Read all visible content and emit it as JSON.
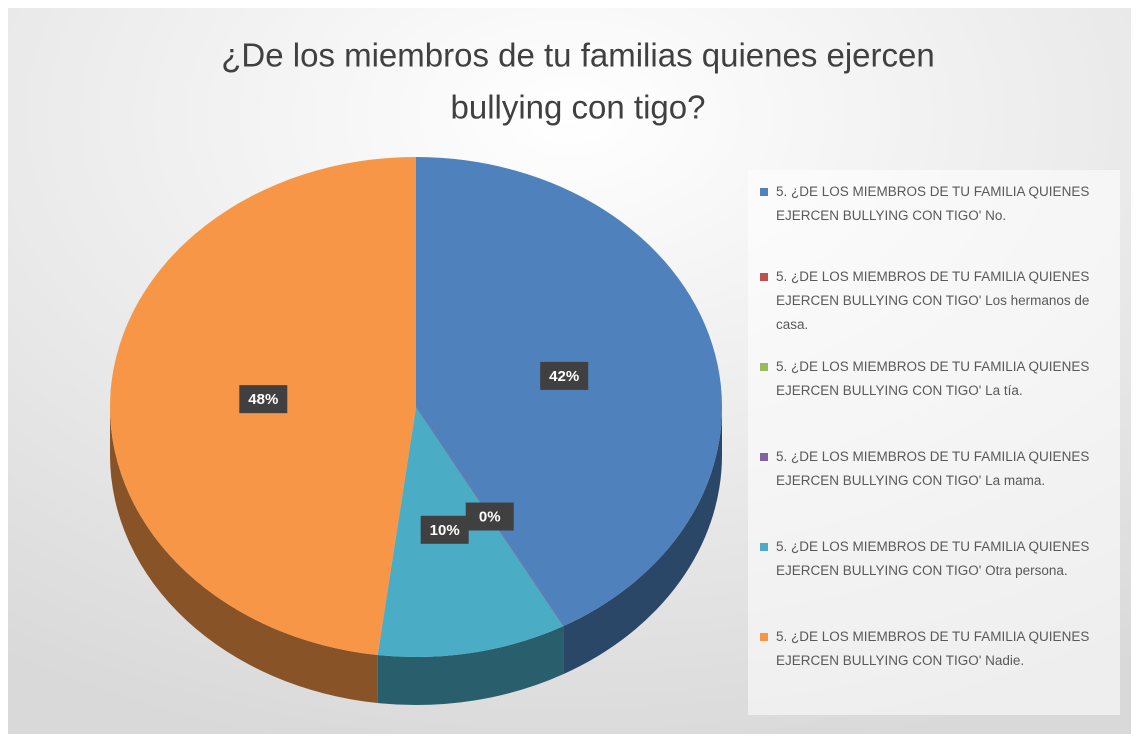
{
  "chart_data": {
    "type": "pie",
    "title": "¿De los miembros de tu familias quienes ejercen bullying con tigo?",
    "categories": [
      "5. ¿DE LOS MIEMBROS DE TU FAMILIA QUIENES EJERCEN BULLYING CON TIGO' No.",
      "5. ¿DE LOS MIEMBROS DE TU FAMILIA QUIENES EJERCEN BULLYING CON TIGO' Los hermanos de casa.",
      "5. ¿DE LOS MIEMBROS DE TU FAMILIA QUIENES EJERCEN BULLYING CON TIGO' La tía.",
      "5. ¿DE LOS MIEMBROS DE TU FAMILIA QUIENES EJERCEN BULLYING CON TIGO' La mama.",
      "5. ¿DE LOS MIEMBROS DE TU FAMILIA QUIENES EJERCEN BULLYING CON TIGO' Otra persona.",
      "5. ¿DE LOS MIEMBROS DE TU FAMILIA QUIENES EJERCEN BULLYING CON TIGO' Nadie."
    ],
    "values": [
      42,
      0,
      0,
      0,
      10,
      48
    ],
    "value_labels": [
      "42%",
      "0%",
      null,
      null,
      "10%",
      "48%"
    ],
    "colors": [
      "#4f81bd",
      "#c0504d",
      "#9bbb59",
      "#8064a2",
      "#4bacc6",
      "#f79646"
    ],
    "legend": "right"
  }
}
